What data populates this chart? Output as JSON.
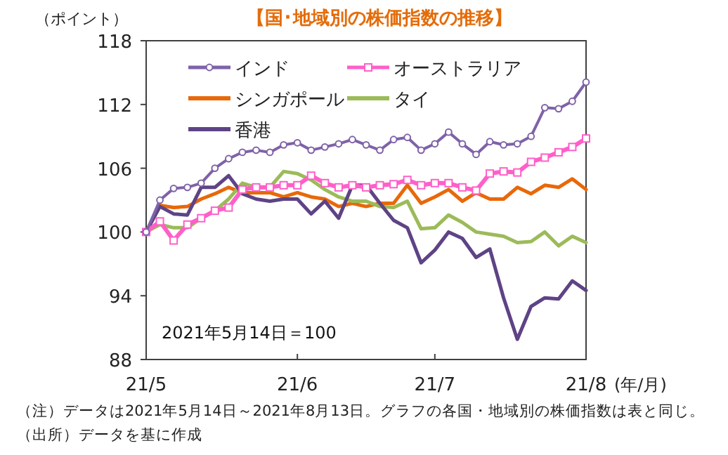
{
  "chart_data": {
    "type": "line",
    "title": "【国･地域別の株価指数の推移】",
    "ylabel": "（ポイント）",
    "xlabel": "(年/月)",
    "categories": [
      "21/5",
      null,
      null,
      null,
      null,
      null,
      null,
      null,
      null,
      null,
      null,
      "21/6",
      null,
      null,
      null,
      null,
      null,
      null,
      null,
      null,
      null,
      "21/7",
      null,
      null,
      null,
      null,
      null,
      null,
      null,
      null,
      null,
      null,
      "21/8"
    ],
    "ylim": [
      88,
      118
    ],
    "yticks": [
      88,
      94,
      100,
      106,
      112,
      118
    ],
    "grid": false,
    "legend": "top left",
    "series": [
      {
        "name": "インド",
        "color": "#7f62a8",
        "marker": "circle",
        "values": [
          100,
          103,
          104.1,
          104.2,
          104.6,
          106,
          106.9,
          107.5,
          107.7,
          107.5,
          108.2,
          108.4,
          107.7,
          108,
          108.3,
          108.7,
          108.2,
          107.7,
          108.7,
          108.9,
          107.7,
          108.3,
          109.4,
          108.3,
          107.3,
          108.5,
          108.2,
          108.3,
          109,
          111.7,
          111.6,
          112.3,
          114.1
        ]
      },
      {
        "name": "オーストラリア",
        "color": "#ff5fc8",
        "marker": "square",
        "values": [
          100,
          101,
          99.2,
          100.7,
          101.3,
          102,
          102.3,
          104,
          104.2,
          104.2,
          104.4,
          104.4,
          105.3,
          104.6,
          104.2,
          104.4,
          104.2,
          104.4,
          104.5,
          104.9,
          104.4,
          104.6,
          104.6,
          104.2,
          103.9,
          105.5,
          105.7,
          105.6,
          106.6,
          107,
          107.5,
          108,
          108.8
        ]
      },
      {
        "name": "シンガポール",
        "color": "#e8680a",
        "values": [
          100,
          102.5,
          102.3,
          102.4,
          103.1,
          103.6,
          104.2,
          103.7,
          103.7,
          103.7,
          103.3,
          103.7,
          103.3,
          103.1,
          102.4,
          102.7,
          102.4,
          102.7,
          102.7,
          104.4,
          102.7,
          103.3,
          104,
          102.9,
          103.7,
          103.1,
          103.1,
          104.2,
          103.6,
          104.4,
          104.2,
          105,
          104
        ]
      },
      {
        "name": "タイ",
        "color": "#9bbb59",
        "values": [
          100,
          100.7,
          100.4,
          100.4,
          101.3,
          102,
          103.1,
          104.6,
          104.2,
          104.2,
          105.7,
          105.5,
          104.9,
          104,
          103.3,
          102.9,
          102.9,
          102.4,
          102.3,
          102.9,
          100.3,
          100.4,
          101.6,
          100.9,
          100,
          99.8,
          99.6,
          99,
          99.1,
          100,
          98.7,
          99.6,
          99
        ]
      },
      {
        "name": "香港",
        "color": "#5e4385",
        "values": [
          100,
          102.4,
          101.7,
          101.6,
          104.2,
          104.2,
          105.3,
          103.6,
          103.1,
          102.9,
          103.1,
          103.1,
          101.7,
          102.9,
          101.3,
          104.4,
          104.4,
          102.7,
          101.1,
          100.4,
          97.1,
          98.3,
          100,
          99.4,
          97.6,
          98.4,
          93.8,
          89.9,
          93,
          93.8,
          93.7,
          95.4,
          94.5
        ]
      }
    ],
    "annotations": [
      "2021年5月14日＝100",
      "（注）データは2021年5月14日～2021年8月13日。グラフの各国・地域別の株価指数は表と同じ。",
      "（出所）データを基に作成"
    ]
  }
}
